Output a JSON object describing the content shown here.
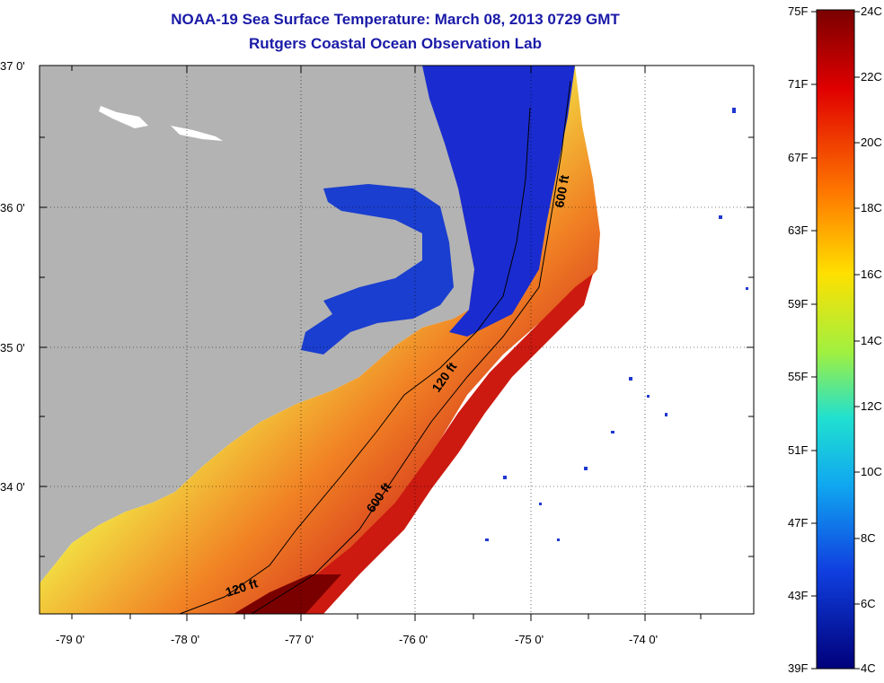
{
  "title": "NOAA-19 Sea Surface Temperature:  March 08, 2013 0729 GMT",
  "subtitle": "Rutgers Coastal Ocean Observation Lab",
  "axes": {
    "lat_labels": [
      "37 0'",
      "36 0'",
      "35 0'",
      "34 0'"
    ],
    "lon_labels": [
      "-79 0'",
      "-78 0'",
      "-77 0'",
      "-76 0'",
      "-75 0'",
      "-74 0'"
    ]
  },
  "contours": [
    "600 ft",
    "120 ft",
    "600 ft",
    "120 ft"
  ],
  "colorbar": {
    "fahrenheit": [
      "75F",
      "71F",
      "67F",
      "63F",
      "59F",
      "55F",
      "51F",
      "47F",
      "43F",
      "39F"
    ],
    "celsius": [
      "24C",
      "22C",
      "20C",
      "18C",
      "16C",
      "14C",
      "12C",
      "10C",
      "8C",
      "6C",
      "4C"
    ]
  },
  "colors": {
    "land": "#b3b3b3",
    "title": "#1a1aa8",
    "grid": "#000000"
  }
}
